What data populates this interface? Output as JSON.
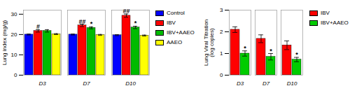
{
  "chart_data": [
    {
      "type": "bar",
      "categories": [
        "D3",
        "D7",
        "D10"
      ],
      "series": [
        {
          "name": "Control",
          "color": "#0000FF",
          "values": [
            20.0,
            20.0,
            19.7
          ],
          "errors": [
            0.25,
            0.25,
            0.25
          ]
        },
        {
          "name": "IBV",
          "color": "#FF0000",
          "values": [
            21.8,
            24.5,
            29.3
          ],
          "errors": [
            0.6,
            0.6,
            0.8
          ]
        },
        {
          "name": "IBV+AAEO",
          "color": "#00BB00",
          "values": [
            21.8,
            23.3,
            23.5
          ],
          "errors": [
            0.6,
            0.5,
            0.6
          ]
        },
        {
          "name": "AAEO",
          "color": "#FFFF00",
          "values": [
            20.2,
            19.8,
            19.5
          ],
          "errors": [
            0.25,
            0.25,
            0.25
          ]
        }
      ],
      "annotations": [
        {
          "category": "D3",
          "series": "IBV",
          "text": "#"
        },
        {
          "category": "D7",
          "series": "IBV",
          "text": "##"
        },
        {
          "category": "D7",
          "series": "IBV+AAEO",
          "text": "*"
        },
        {
          "category": "D10",
          "series": "IBV",
          "text": "##"
        },
        {
          "category": "D10",
          "series": "IBV+AAEO",
          "text": "*"
        }
      ],
      "ylabel": "Lung index (mg/g)",
      "ylim": [
        0,
        32
      ],
      "yticks": [
        0,
        10,
        20,
        30
      ],
      "legend": "right"
    },
    {
      "type": "bar",
      "categories": [
        "D3",
        "D7",
        "D10"
      ],
      "series": [
        {
          "name": "IBV",
          "color": "#FF0000",
          "values": [
            2.1,
            1.68,
            1.38
          ],
          "errors": [
            0.13,
            0.18,
            0.2
          ]
        },
        {
          "name": "IBV+AAEO",
          "color": "#00CC00",
          "values": [
            1.0,
            0.85,
            0.72
          ],
          "errors": [
            0.12,
            0.15,
            0.1
          ]
        }
      ],
      "annotations": [
        {
          "category": "D3",
          "series": "IBV+AAEO",
          "text": "*"
        },
        {
          "category": "D7",
          "series": "IBV+AAEO",
          "text": "*"
        },
        {
          "category": "D10",
          "series": "IBV+AAEO",
          "text": "*"
        }
      ],
      "ylabel": "Lung Viral Titration\n(log copies)",
      "ylim": [
        0,
        3
      ],
      "yticks": [
        0,
        1,
        2,
        3
      ],
      "legend": "right"
    }
  ]
}
